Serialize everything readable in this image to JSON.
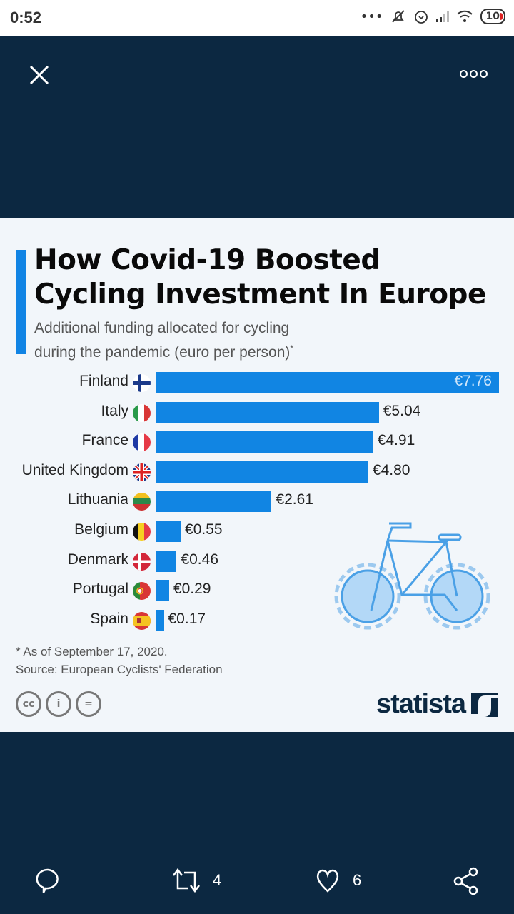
{
  "statusbar": {
    "time": "0:52",
    "battery": "10",
    "icons": [
      "more-dots-icon",
      "bell-muted-icon",
      "alarm-icon",
      "signal-icon",
      "wifi-icon",
      "battery-icon"
    ]
  },
  "topbar": {
    "close_icon": "close-icon",
    "more_icon": "more-options-icon"
  },
  "card": {
    "title_line1": "How Covid-19 Boosted",
    "title_line2": "Cycling Investment In Europe",
    "subtitle_line1": "Additional funding allocated for cycling",
    "subtitle_line2": "during the pandemic (euro per person)",
    "subtitle_mark": "*",
    "note": "* As of September 17, 2020.",
    "source": "Source: European Cyclists' Federation",
    "license_icons": [
      "creative-commons-icon",
      "attribution-icon",
      "no-derivatives-icon"
    ],
    "license_glyphs": [
      "cc",
      "i",
      "="
    ],
    "brand": "statista"
  },
  "chart_data": {
    "type": "bar",
    "orientation": "horizontal",
    "title": "How Covid-19 Boosted Cycling Investment In Europe",
    "subtitle": "Additional funding allocated for cycling during the pandemic (euro per person)*",
    "xlabel": "",
    "ylabel": "",
    "categories": [
      "Finland",
      "Italy",
      "France",
      "United Kingdom",
      "Lithuania",
      "Belgium",
      "Denmark",
      "Portugal",
      "Spain"
    ],
    "values": [
      7.76,
      5.04,
      4.91,
      4.8,
      2.61,
      0.55,
      0.46,
      0.29,
      0.17
    ],
    "value_labels": [
      "€7.76",
      "€5.04",
      "€4.91",
      "€4.80",
      "€2.61",
      "€0.55",
      "€0.46",
      "€0.29",
      "€0.17"
    ],
    "flags": [
      "finland-flag",
      "italy-flag",
      "france-flag",
      "uk-flag",
      "lithuania-flag",
      "belgium-flag",
      "denmark-flag",
      "portugal-flag",
      "spain-flag"
    ],
    "xlim": [
      0,
      7.76
    ],
    "bar_color": "#1185e3",
    "grid": false,
    "legend": "none"
  },
  "actions": {
    "reply_icon": "reply-icon",
    "retweet_count": "4",
    "like_count": "6",
    "share_icon": "share-icon"
  },
  "colors": {
    "background": "#0c2841",
    "card": "#f2f6fa",
    "accent": "#1184e4"
  }
}
